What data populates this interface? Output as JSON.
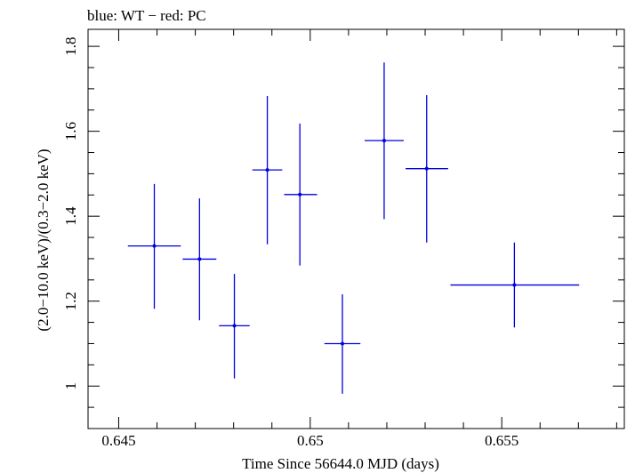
{
  "chart_data": {
    "type": "scatter",
    "title": "blue: WT − red: PC",
    "xlabel": "Time Since 56644.0 MJD (days)",
    "ylabel": "(2.0−10.0 keV)/(0.3−2.0 keV)",
    "xlim": [
      0.6442,
      0.6582
    ],
    "ylim": [
      0.9,
      1.84
    ],
    "xticks": [
      0.645,
      0.65,
      0.655
    ],
    "xtick_labels": [
      "0.645",
      "0.65",
      "0.655"
    ],
    "yticks": [
      1,
      1.2,
      1.4,
      1.6,
      1.8
    ],
    "ytick_labels": [
      "1",
      "1.2",
      "1.4",
      "1.6",
      "1.8"
    ],
    "series": [
      {
        "name": "WT",
        "color": "#0000e0",
        "points": [
          {
            "x": 0.64593,
            "y": 1.33,
            "xlo": 0.64524,
            "xhi": 0.64662,
            "ylo": 1.182,
            "yhi": 1.476
          },
          {
            "x": 0.64711,
            "y": 1.299,
            "xlo": 0.64667,
            "xhi": 0.64755,
            "ylo": 1.155,
            "yhi": 1.442
          },
          {
            "x": 0.64802,
            "y": 1.142,
            "xlo": 0.64762,
            "xhi": 0.64842,
            "ylo": 1.018,
            "yhi": 1.264
          },
          {
            "x": 0.64888,
            "y": 1.509,
            "xlo": 0.64849,
            "xhi": 0.64927,
            "ylo": 1.334,
            "yhi": 1.683
          },
          {
            "x": 0.64973,
            "y": 1.451,
            "xlo": 0.64932,
            "xhi": 0.65018,
            "ylo": 1.284,
            "yhi": 1.618
          },
          {
            "x": 0.65084,
            "y": 1.1,
            "xlo": 0.65037,
            "xhi": 0.65131,
            "ylo": 0.982,
            "yhi": 1.216
          },
          {
            "x": 0.65193,
            "y": 1.578,
            "xlo": 0.65142,
            "xhi": 0.65244,
            "ylo": 1.393,
            "yhi": 1.762
          },
          {
            "x": 0.65304,
            "y": 1.512,
            "xlo": 0.65249,
            "xhi": 0.6536,
            "ylo": 1.338,
            "yhi": 1.685
          },
          {
            "x": 0.65533,
            "y": 1.238,
            "xlo": 0.65366,
            "xhi": 0.65702,
            "ylo": 1.138,
            "yhi": 1.338
          }
        ]
      }
    ]
  }
}
